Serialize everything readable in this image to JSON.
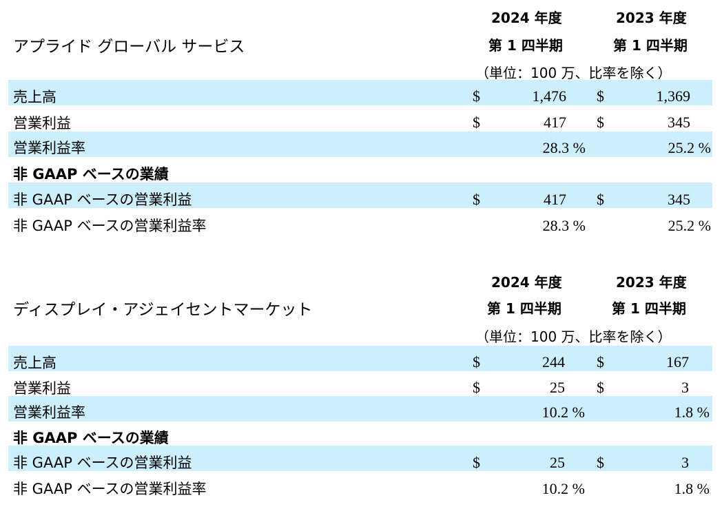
{
  "sections": [
    {
      "title": "アプライド グローバル サービス",
      "col1_year": "2024 年度",
      "col1_quarter": "第 1 四半期",
      "col2_year": "2023 年度",
      "col2_quarter": "第 1 四半期",
      "unit_note": "（単位：100 万、比率を除く）",
      "rows": [
        {
          "label": "売上高",
          "cur1": "$",
          "v1": "1,476",
          "cur2": "$",
          "v2": "1,369"
        },
        {
          "label": "営業利益",
          "cur1": "$",
          "v1": "417",
          "cur2": "$",
          "v2": "345"
        },
        {
          "label": "営業利益率",
          "cur1": "",
          "v1": "28.3 %",
          "cur2": "",
          "v2": "25.2 %"
        },
        {
          "label": "非 GAAP ベースの業績",
          "cur1": "",
          "v1": "",
          "cur2": "",
          "v2": ""
        },
        {
          "label": "非 GAAP ベースの営業利益",
          "cur1": "$",
          "v1": "417",
          "cur2": "$",
          "v2": "345"
        },
        {
          "label": "非 GAAP ベースの営業利益率",
          "cur1": "",
          "v1": "28.3 %",
          "cur2": "",
          "v2": "25.2 %"
        }
      ]
    },
    {
      "title": "ディスプレイ・アジェイセントマーケット",
      "col1_year": "2024 年度",
      "col1_quarter": "第 1 四半期",
      "col2_year": "2023 年度",
      "col2_quarter": "第 1 四半期",
      "unit_note": "（単位：100 万、比率を除く）",
      "rows": [
        {
          "label": "売上高",
          "cur1": "$",
          "v1": "244",
          "cur2": "$",
          "v2": "167"
        },
        {
          "label": "営業利益",
          "cur1": "$",
          "v1": "25",
          "cur2": "$",
          "v2": "3"
        },
        {
          "label": "営業利益率",
          "cur1": "",
          "v1": "10.2 %",
          "cur2": "",
          "v2": "1.8 %"
        },
        {
          "label": "非 GAAP ベースの業績",
          "cur1": "",
          "v1": "",
          "cur2": "",
          "v2": ""
        },
        {
          "label": "非 GAAP ベースの営業利益",
          "cur1": "$",
          "v1": "25",
          "cur2": "$",
          "v2": "3"
        },
        {
          "label": "非 GAAP ベースの営業利益率",
          "cur1": "",
          "v1": "10.2 %",
          "cur2": "",
          "v2": "1.8 %"
        }
      ]
    }
  ],
  "colors": {
    "row_band": "#cdeefc"
  }
}
